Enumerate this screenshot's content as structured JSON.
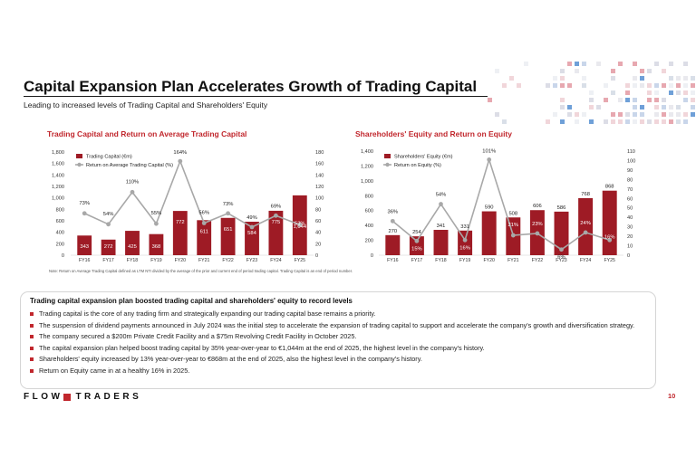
{
  "slide": {
    "title": "Capital Expansion Plan Accelerates Growth of Trading Capital",
    "subtitle": "Leading to increased levels of Trading Capital and Shareholders' Equity",
    "page_number": "10",
    "logo_left": "FLOW",
    "logo_right": "TRADERS",
    "note": "Note: Return on Average Trading Capital defined as LTM NTI divided by the average of the prior and current end of period trading capital. Trading Capital is an end of period number.",
    "colors": {
      "bar": "#9e1b25",
      "line": "#a8a8a8",
      "accent": "#c1272d"
    }
  },
  "summary": {
    "heading": "Trading capital expansion plan boosted trading capital and shareholders' equity to record levels",
    "bullets": [
      "Trading capital is the core of any trading firm and strategically expanding our trading capital base remains a priority.",
      "The suspension of dividend payments announced in July 2024 was the initial step to accelerate the expansion of trading capital to support and accelerate the company's growth and diversification strategy.",
      "The company secured a $200m Private Credit Facility and a $75m Revolving Credit Facility in October 2025.",
      "The capital expansion plan helped boost trading capital by 35% year-over-year to €1,044m at the end of 2025, the highest level in the company's history.",
      "Shareholders' equity increased by 13% year-over-year to €868m at the end of 2025, also the highest level in the company's history.",
      "Return on Equity came in at a healthy 16% in 2025."
    ]
  },
  "chart_data": [
    {
      "type": "bar",
      "title": "Trading Capital and Return on Average Trading Capital",
      "categories": [
        "FY16",
        "FY17",
        "FY18",
        "FY19",
        "FY20",
        "FY21",
        "FY22",
        "FY23",
        "FY24",
        "FY25"
      ],
      "left_axis": {
        "min": 0,
        "max": 1800,
        "step": 200,
        "ticks": [
          "0",
          "200",
          "400",
          "600",
          "800",
          "1,000",
          "1,200",
          "1,400",
          "1,600",
          "1,800"
        ]
      },
      "right_axis": {
        "min": 0,
        "max": 180,
        "step": 20,
        "ticks": [
          "0",
          "20",
          "40",
          "60",
          "80",
          "100",
          "120",
          "140",
          "160",
          "180"
        ]
      },
      "series": [
        {
          "name": "Trading Capital (€m)",
          "kind": "bar",
          "values": [
            343,
            272,
            425,
            368,
            772,
            611,
            651,
            584,
            775,
            1044
          ],
          "labels": [
            "343",
            "272",
            "425",
            "368",
            "772",
            "611",
            "651",
            "584",
            "775",
            "1,044"
          ]
        },
        {
          "name": "Return on Average Trading Capital (%)",
          "kind": "line",
          "values": [
            73,
            54,
            110,
            55,
            164,
            56,
            73,
            49,
            69,
            53
          ],
          "labels": [
            "73%",
            "54%",
            "110%",
            "55%",
            "164%",
            "56%",
            "73%",
            "49%",
            "69%",
            "53%"
          ]
        }
      ],
      "legend": "top-left"
    },
    {
      "type": "bar",
      "title": "Shareholders' Equity and Return on Equity",
      "categories": [
        "FY16",
        "FY17",
        "FY18",
        "FY19",
        "FY20",
        "FY21",
        "FY22",
        "FY23",
        "FY24",
        "FY25"
      ],
      "left_axis": {
        "min": 0,
        "max": 1400,
        "step": 200,
        "ticks": [
          "0",
          "200",
          "400",
          "600",
          "800",
          "1,000",
          "1,200",
          "1,400"
        ]
      },
      "right_axis": {
        "min": 0,
        "max": 110,
        "step": 10,
        "ticks": [
          "0",
          "10",
          "20",
          "30",
          "40",
          "50",
          "60",
          "70",
          "80",
          "90",
          "100",
          "110"
        ]
      },
      "series": [
        {
          "name": "Shareholders' Equity (€m)",
          "kind": "bar",
          "values": [
            270,
            254,
            341,
            331,
            590,
            508,
            606,
            586,
            768,
            868
          ],
          "labels": [
            "270",
            "254",
            "341",
            "331",
            "590",
            "508",
            "606",
            "586",
            "768",
            "868"
          ]
        },
        {
          "name": "Return on Equity (%)",
          "kind": "line",
          "values": [
            36,
            15,
            54,
            16,
            101,
            21,
            23,
            6,
            24,
            16
          ],
          "labels": [
            "36%",
            "15%",
            "54%",
            "16%",
            "101%",
            "21%",
            "23%",
            "6%",
            "24%",
            "16%"
          ]
        }
      ],
      "legend": "top-left"
    }
  ]
}
